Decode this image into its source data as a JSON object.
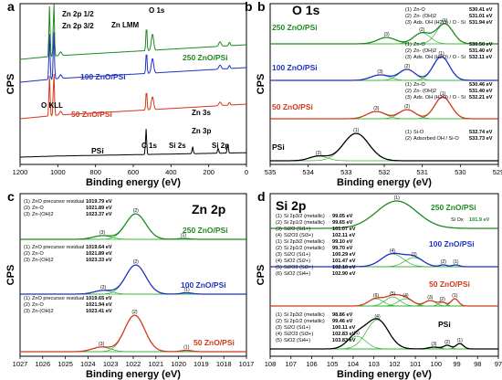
{
  "colors": {
    "psi": "#000000",
    "zno50": "#d2381c",
    "zno100": "#1f31c4",
    "zno250": "#1e8a1e",
    "fit": "#2fb02f",
    "env": "#999999"
  },
  "chart_data": [
    {
      "id": "a",
      "letter": "a",
      "type": "line",
      "xlabel": "Binding energy (eV)",
      "ylabel": "CPS",
      "xlim": [
        1200,
        0
      ],
      "xticks": [
        "1200",
        "1000",
        "800",
        "600",
        "400",
        "200",
        "0"
      ],
      "series": [
        {
          "name": "250 ZnO/PSi",
          "color": "#1e8a1e"
        },
        {
          "name": "100 ZnO/PSi",
          "color": "#1f31c4"
        },
        {
          "name": "50 ZnO/PSi",
          "color": "#d2381c"
        },
        {
          "name": "PSi",
          "color": "#000000"
        }
      ],
      "annotations": [
        "Zn 2p 1/2",
        "Zn 2p 3/2",
        "Zn LMM",
        "O 1s",
        "O KLL",
        "Zn 3s",
        "Zn 3p",
        "C 1s",
        "Si 2s",
        "Si 2p"
      ]
    },
    {
      "id": "b",
      "letter": "b",
      "type": "line",
      "title": "O 1s",
      "xlabel": "Binding energy (eV)",
      "ylabel": "CPS",
      "xlim": [
        535,
        529
      ],
      "xticks": [
        "535",
        "534",
        "533",
        "532",
        "531",
        "530",
        "529"
      ],
      "series": [
        {
          "name": "250 ZnO/PSi",
          "color": "#1e8a1e",
          "components": [
            {
              "id": "(1)",
              "label": "Zn-O",
              "be": 530.41,
              "value": "530.41 eV"
            },
            {
              "id": "(2)",
              "label": "Zn- (OH)2",
              "be": 531.01,
              "value": "531.01 eV"
            },
            {
              "id": "(3)",
              "label": "Ads. OH (H2O) / O - Si",
              "be": 531.94,
              "value": "531.94 eV"
            }
          ]
        },
        {
          "name": "100 ZnO/PSi",
          "color": "#1f31c4",
          "components": [
            {
              "id": "(1)",
              "label": "Zn-O",
              "be": 530.5,
              "value": "530.50 eV"
            },
            {
              "id": "(2)",
              "label": "Zn- (OH)2",
              "be": 531.4,
              "value": "531.40 eV"
            },
            {
              "id": "(3)",
              "label": "Ads. OH (H2O) / O - Si",
              "be": 532.11,
              "value": "532.11 eV"
            }
          ]
        },
        {
          "name": "50 ZnO/PSi",
          "color": "#d2381c",
          "components": [
            {
              "id": "(1)",
              "label": "Zn-O",
              "be": 530.46,
              "value": "530.46 eV"
            },
            {
              "id": "(2)",
              "label": "Zn- (OH)2",
              "be": 531.4,
              "value": "531.40 eV"
            },
            {
              "id": "(3)",
              "label": "Ads. OH (H2O) / O - Si",
              "be": 532.21,
              "value": "532.21 eV"
            }
          ]
        },
        {
          "name": "PSi",
          "color": "#000000",
          "components": [
            {
              "id": "(1)",
              "label": "Si-O",
              "be": 532.74,
              "value": "532.74 eV"
            },
            {
              "id": "(2)",
              "label": "Adsorbed OH / Si-O",
              "be": 533.73,
              "value": "533.73 eV"
            }
          ]
        }
      ]
    },
    {
      "id": "c",
      "letter": "c",
      "type": "line",
      "title": "Zn 2p",
      "xlabel": "Binding energy (eV)",
      "ylabel": "CPS",
      "xlim": [
        1027,
        1017
      ],
      "xticks": [
        "1027",
        "1026",
        "1025",
        "1024",
        "1023",
        "1022",
        "1021",
        "1020",
        "1019",
        "1018",
        "1017"
      ],
      "series": [
        {
          "name": "250 ZnO/PSi",
          "color": "#1e8a1e",
          "components": [
            {
              "id": "(1)",
              "label": "ZnO precursor residual",
              "be": 1019.79,
              "value": "1019.79 eV"
            },
            {
              "id": "(2)",
              "label": "Zn-O",
              "be": 1021.89,
              "value": "1021.89 eV"
            },
            {
              "id": "(3)",
              "label": "Zn-(OH)2",
              "be": 1023.37,
              "value": "1023.37 eV"
            }
          ]
        },
        {
          "name": "100 ZnO/PSi",
          "color": "#1f31c4",
          "components": [
            {
              "id": "(1)",
              "label": "ZnO precursor residual",
              "be": 1019.64,
              "value": "1019.64 eV"
            },
            {
              "id": "(2)",
              "label": "Zn-O",
              "be": 1021.89,
              "value": "1021.89 eV"
            },
            {
              "id": "(3)",
              "label": "Zn-(OH)2",
              "be": 1023.33,
              "value": "1023.33 eV"
            }
          ]
        },
        {
          "name": "50 ZnO/PSi",
          "color": "#d2381c",
          "components": [
            {
              "id": "(1)",
              "label": "ZnO precursor residual",
              "be": 1019.65,
              "value": "1019.65 eV"
            },
            {
              "id": "(2)",
              "label": "Zn-O",
              "be": 1021.94,
              "value": "1021.94 eV"
            },
            {
              "id": "(3)",
              "label": "Zn-(OH)2",
              "be": 1023.41,
              "value": "1023.41 eV"
            }
          ]
        }
      ]
    },
    {
      "id": "d",
      "letter": "d",
      "type": "line",
      "title": "Si 2p",
      "xlabel": "Binding energy (eV)",
      "ylabel": "CPS",
      "xlim": [
        108,
        97
      ],
      "xticks": [
        "108",
        "107",
        "106",
        "105",
        "104",
        "103",
        "102",
        "101",
        "100",
        "99",
        "98",
        "97"
      ],
      "series": [
        {
          "name": "250 ZnO/PSi",
          "color": "#1e8a1e",
          "components": [
            {
              "id": "(1)",
              "label": "Si Ox",
              "be": 101.9,
              "value": "101.9 eV"
            }
          ]
        },
        {
          "name": "100 ZnO/PSi",
          "color": "#1f31c4",
          "components": [
            {
              "id": "(1)",
              "label": "Si 2p3/2 (metallic)",
              "be": 99.05,
              "value": "99.05 eV"
            },
            {
              "id": "(2)",
              "label": "Si 2p1/2 (metallic)",
              "be": 99.65,
              "value": "99.65 eV"
            },
            {
              "id": "(3)",
              "label": "Si2O (Si1+)",
              "be": 101.07,
              "value": "101.07 eV"
            },
            {
              "id": "(4)",
              "label": "Si2O3 (Si3+)",
              "be": 102.11,
              "value": "102.11 eV"
            }
          ]
        },
        {
          "name": "50 ZnO/PSi",
          "color": "#d2381c",
          "components": [
            {
              "id": "(1)",
              "label": "Si 2p3/2 (metallic)",
              "be": 99.1,
              "value": "99.10 eV"
            },
            {
              "id": "(2)",
              "label": "Si 2p1/2 (metallic)",
              "be": 99.7,
              "value": "99.70 eV"
            },
            {
              "id": "(3)",
              "label": "Si2O (Si1+)",
              "be": 100.29,
              "value": "100.29 eV"
            },
            {
              "id": "(4)",
              "label": "SiO2 (Si2+)",
              "be": 101.47,
              "value": "101.47 eV"
            },
            {
              "id": "(5)",
              "label": "Si2O3 (Si3+)",
              "be": 102.1,
              "value": "102.10 eV"
            },
            {
              "id": "(6)",
              "label": "SiO2 (Si4+)",
              "be": 102.9,
              "value": "102.90 eV"
            }
          ]
        },
        {
          "name": "PSi",
          "color": "#000000",
          "components": [
            {
              "id": "(1)",
              "label": "Si 2p3/2 (metallic)",
              "be": 98.86,
              "value": "98.86 eV"
            },
            {
              "id": "(2)",
              "label": "Si 2p1/2 (metallic)",
              "be": 99.46,
              "value": "99.46 eV"
            },
            {
              "id": "(3)",
              "label": "Si2O (Si1+)",
              "be": 100.11,
              "value": "100.11 eV"
            },
            {
              "id": "(4)",
              "label": "Si2O3 (Si3+)",
              "be": 102.83,
              "value": "102.83 eV"
            },
            {
              "id": "(5)",
              "label": "SiO2 (Si4+)",
              "be": 103.83,
              "value": "103.83 eV"
            }
          ]
        }
      ]
    }
  ]
}
